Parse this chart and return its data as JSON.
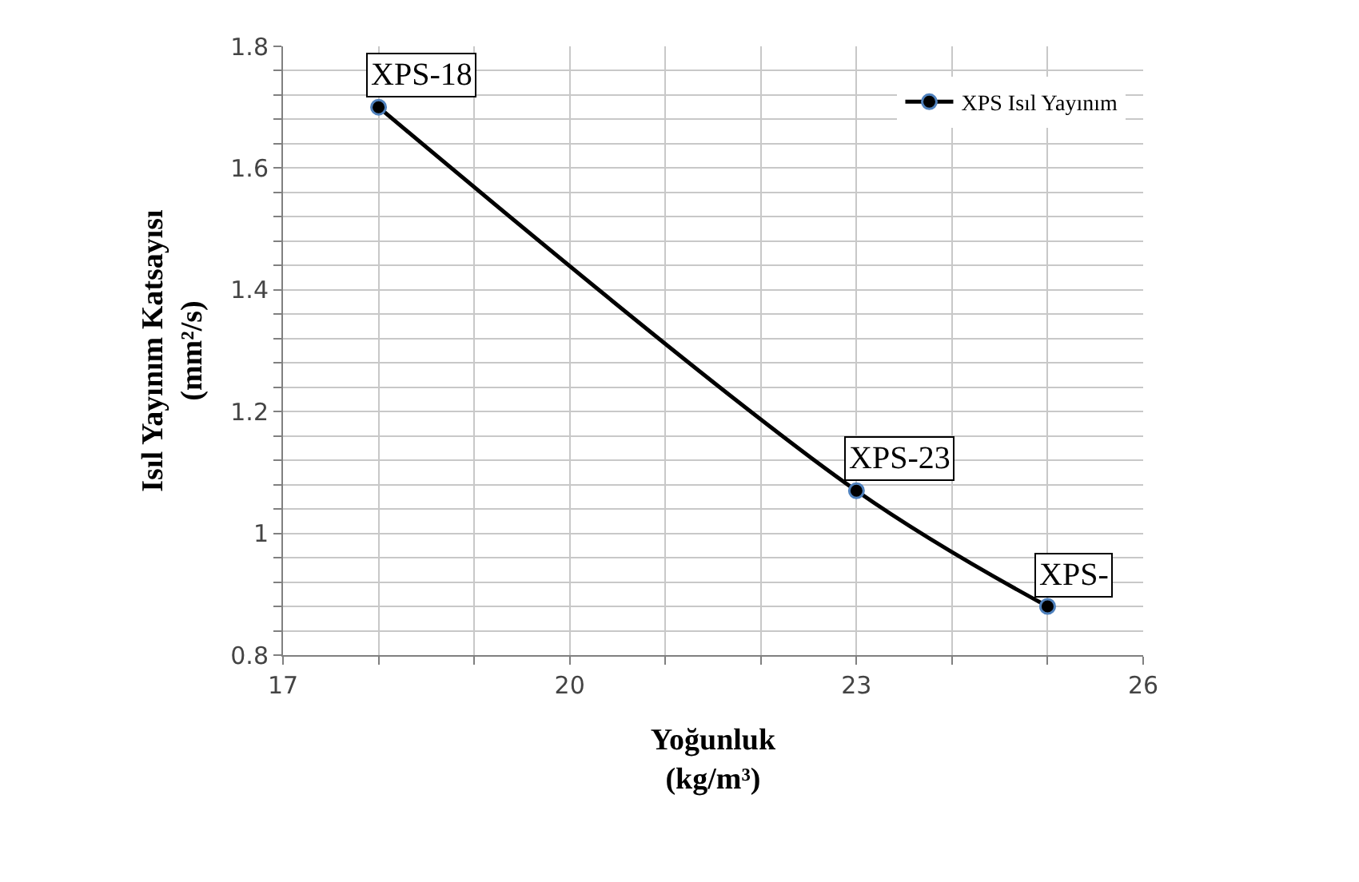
{
  "chart_data": {
    "type": "line",
    "xlabel": "Yoğunluk\n(kg/m³)",
    "ylabel": "Isıl Yayınım Katsayısı\n(mm²/s)",
    "x": [
      18,
      23,
      25
    ],
    "series": [
      {
        "name": "XPS Isıl Yayınım",
        "color": "#000000",
        "values": [
          1.7,
          1.07,
          0.88
        ]
      }
    ],
    "xlim": [
      17,
      26
    ],
    "xticks": [
      17,
      {
        "value": 18,
        "label": null
      },
      {
        "value": 19,
        "label": null
      },
      20,
      {
        "value": 21,
        "label": null
      },
      {
        "value": 22,
        "label": null
      },
      23,
      {
        "value": 24,
        "label": null
      },
      {
        "value": 25,
        "label": null
      },
      26
    ],
    "ylim": [
      0.8,
      1.8
    ],
    "yticks": [
      0.8,
      {
        "value": 0.84,
        "label": null
      },
      {
        "value": 0.88,
        "label": null
      },
      {
        "value": 0.92,
        "label": null
      },
      {
        "value": 0.96,
        "label": null
      },
      1,
      {
        "value": 1.04,
        "label": null
      },
      {
        "value": 1.08,
        "label": null
      },
      {
        "value": 1.12,
        "label": null
      },
      {
        "value": 1.16,
        "label": null
      },
      1.2,
      {
        "value": 1.24,
        "label": null
      },
      {
        "value": 1.28,
        "label": null
      },
      {
        "value": 1.32,
        "label": null
      },
      {
        "value": 1.36,
        "label": null
      },
      1.4,
      {
        "value": 1.44,
        "label": null
      },
      {
        "value": 1.48,
        "label": null
      },
      {
        "value": 1.52,
        "label": null
      },
      {
        "value": 1.56,
        "label": null
      },
      1.6,
      {
        "value": 1.64,
        "label": null
      },
      {
        "value": 1.68,
        "label": null
      },
      {
        "value": 1.72,
        "label": null
      },
      {
        "value": 1.76,
        "label": null
      },
      1.8
    ],
    "annotations": [
      {
        "text": "XPS-18",
        "x": 18,
        "y": 1.7
      },
      {
        "text": "XPS-23",
        "x": 23,
        "y": 1.07
      },
      {
        "text": "XPS-",
        "x": 25,
        "y": 0.88
      }
    ],
    "grid": true,
    "legend": "top right",
    "marker": "circle",
    "line_style": "solid"
  }
}
